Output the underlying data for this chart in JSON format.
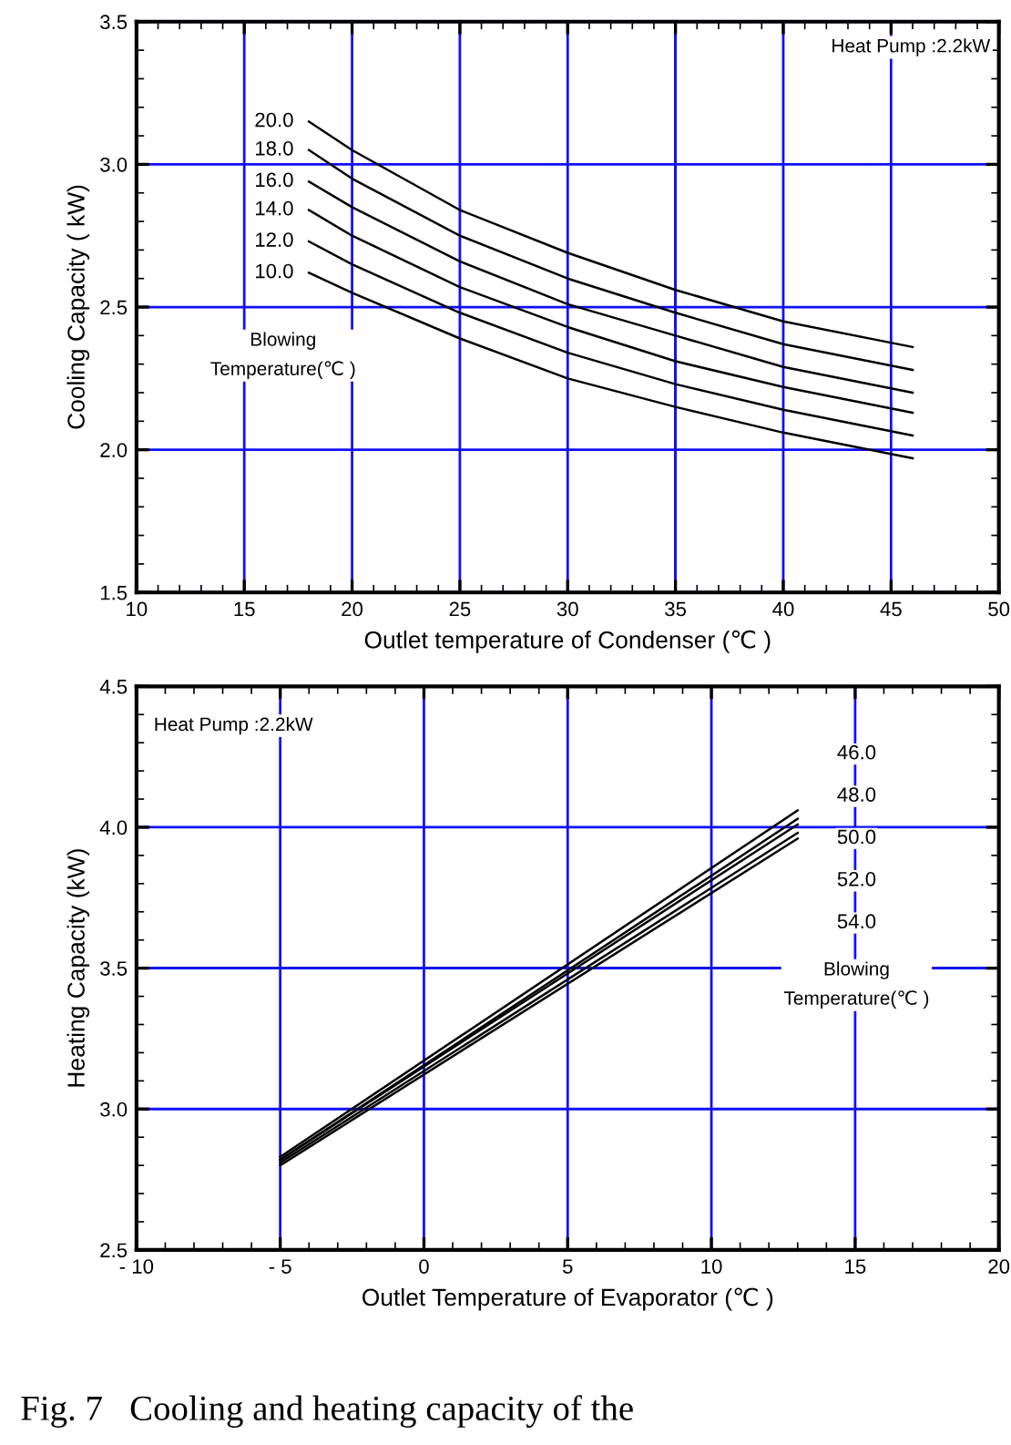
{
  "chart_data": [
    {
      "type": "line",
      "xlabel": "Outlet temperature of Condenser (℃ )",
      "ylabel": "Cooling Capacity ( kW)",
      "xlim": [
        10,
        50
      ],
      "xticks": [
        10,
        15,
        20,
        25,
        30,
        35,
        40,
        45,
        50
      ],
      "ylim": [
        1.5,
        3.5
      ],
      "yticks": [
        {
          "value": 1.5,
          "label": "1.5"
        },
        {
          "value": 2.0,
          "label": "2.0"
        },
        {
          "value": 2.5,
          "label": "2.5"
        },
        {
          "value": 3.0,
          "label": "3.0"
        },
        {
          "value": 3.5,
          "label": "3.5"
        }
      ],
      "grid": true,
      "marker": "none",
      "line_style": "solid",
      "x": [
        18,
        20,
        25,
        30,
        35,
        40,
        46
      ],
      "series": [
        {
          "name": "20.0",
          "color": "#000000",
          "values": [
            3.15,
            3.05,
            2.84,
            2.69,
            2.56,
            2.45,
            2.36
          ]
        },
        {
          "name": "18.0",
          "color": "#000000",
          "values": [
            3.05,
            2.95,
            2.75,
            2.6,
            2.48,
            2.37,
            2.28
          ]
        },
        {
          "name": "16.0",
          "color": "#000000",
          "values": [
            2.94,
            2.85,
            2.66,
            2.51,
            2.4,
            2.29,
            2.2
          ]
        },
        {
          "name": "14.0",
          "color": "#000000",
          "values": [
            2.84,
            2.75,
            2.57,
            2.43,
            2.31,
            2.22,
            2.13
          ]
        },
        {
          "name": "12.0",
          "color": "#000000",
          "values": [
            2.73,
            2.65,
            2.48,
            2.34,
            2.23,
            2.14,
            2.05
          ]
        },
        {
          "name": "10.0",
          "color": "#000000",
          "values": [
            2.62,
            2.55,
            2.39,
            2.25,
            2.15,
            2.06,
            1.97
          ]
        }
      ],
      "ref_lines": [
        {
          "axis": "x",
          "value": 35,
          "color": "#000000"
        }
      ],
      "annotations": [
        "Heat Pump :2.2kW",
        "Blowing\nTemperature(℃ )"
      ]
    },
    {
      "type": "line",
      "xlabel": "Outlet Temperature of Evaporator (℃ )",
      "ylabel": "Heating Capacity (kW)",
      "xlim": [
        -10,
        20
      ],
      "xticks": [
        {
          "value": -10,
          "label": "- 10"
        },
        {
          "value": -5,
          "label": "- 5"
        },
        0,
        5,
        10,
        15,
        20
      ],
      "ylim": [
        2.5,
        4.5
      ],
      "yticks": [
        {
          "value": 2.5,
          "label": "2.5"
        },
        {
          "value": 3.0,
          "label": "3.0"
        },
        {
          "value": 3.5,
          "label": "3.5"
        },
        {
          "value": 4.0,
          "label": "4.0"
        },
        {
          "value": 4.5,
          "label": "4.5"
        }
      ],
      "grid": true,
      "marker": "none",
      "line_style": "solid",
      "x": [
        -5,
        13
      ],
      "series": [
        {
          "name": "46.0",
          "color": "#000000",
          "values": [
            2.83,
            4.06
          ]
        },
        {
          "name": "48.0",
          "color": "#000000",
          "values": [
            2.82,
            4.03
          ]
        },
        {
          "name": "50.0",
          "color": "#000000",
          "values": [
            2.82,
            4.01
          ]
        },
        {
          "name": "52.0",
          "color": "#000000",
          "values": [
            2.81,
            3.98
          ]
        },
        {
          "name": "54.0",
          "color": "#000000",
          "values": [
            2.8,
            3.96
          ]
        }
      ],
      "ref_lines": [
        {
          "axis": "y",
          "value": 3.5,
          "color": "#000000"
        }
      ],
      "annotations": [
        "Heat Pump :2.2kW",
        "Blowing\nTemperature(℃ )",
        "Fig. 7   Cooling and heating capacity of the"
      ]
    }
  ]
}
